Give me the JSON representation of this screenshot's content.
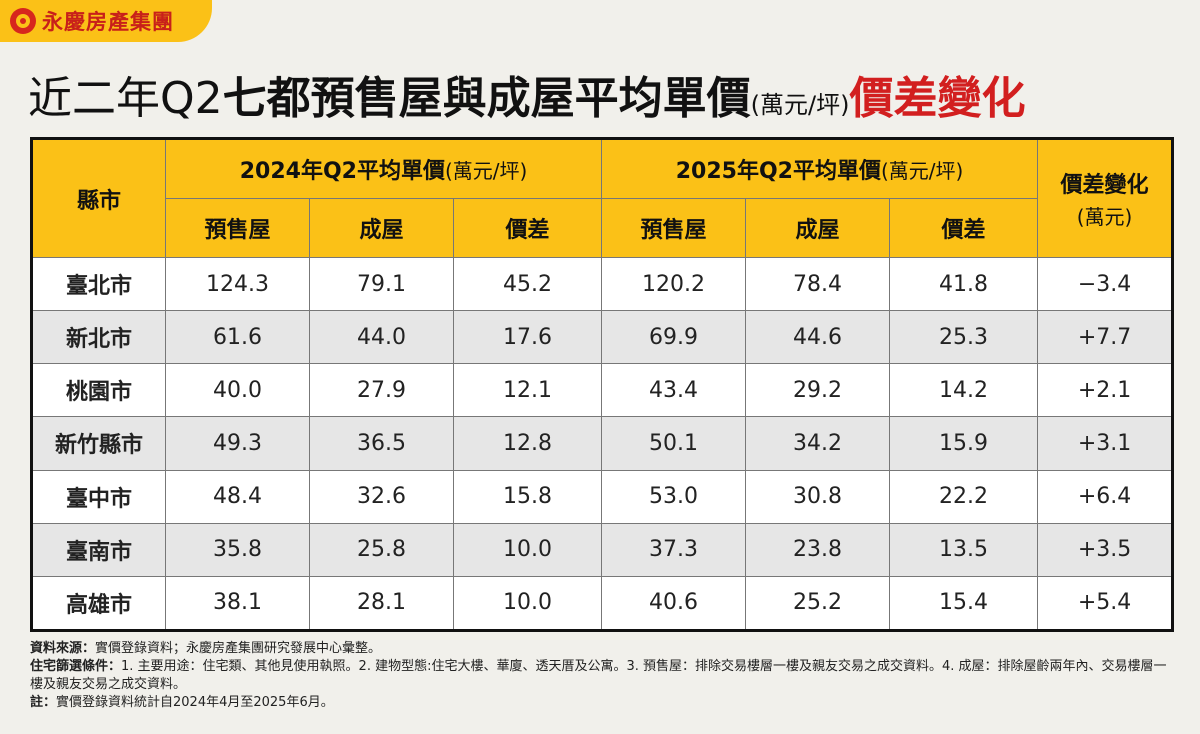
{
  "brand": {
    "name": "永慶房產集團"
  },
  "title": {
    "part1": "近二年Q2",
    "part2": "七都預售屋與成屋平均單價",
    "unit": "(萬元/坪)",
    "part3": "價差變化"
  },
  "chart_data": {
    "type": "table",
    "header": {
      "city": "縣市",
      "group_2024": "2024年Q2平均單價",
      "group_2025": "2025年Q2平均單價",
      "group_unit": "(萬元/坪)",
      "change": "價差變化",
      "change_unit": "(萬元)",
      "sub_presale": "預售屋",
      "sub_existing": "成屋",
      "sub_gap": "價差"
    },
    "rows": [
      {
        "city": "臺北市",
        "c2024": [
          "124.3",
          "79.1",
          "45.2"
        ],
        "c2025": [
          "120.2",
          "78.4",
          "41.8"
        ],
        "change": "−3.4"
      },
      {
        "city": "新北市",
        "c2024": [
          "61.6",
          "44.0",
          "17.6"
        ],
        "c2025": [
          "69.9",
          "44.6",
          "25.3"
        ],
        "change": "+7.7"
      },
      {
        "city": "桃園市",
        "c2024": [
          "40.0",
          "27.9",
          "12.1"
        ],
        "c2025": [
          "43.4",
          "29.2",
          "14.2"
        ],
        "change": "+2.1"
      },
      {
        "city": "新竹縣市",
        "c2024": [
          "49.3",
          "36.5",
          "12.8"
        ],
        "c2025": [
          "50.1",
          "34.2",
          "15.9"
        ],
        "change": "+3.1"
      },
      {
        "city": "臺中市",
        "c2024": [
          "48.4",
          "32.6",
          "15.8"
        ],
        "c2025": [
          "53.0",
          "30.8",
          "22.2"
        ],
        "change": "+6.4"
      },
      {
        "city": "臺南市",
        "c2024": [
          "35.8",
          "25.8",
          "10.0"
        ],
        "c2025": [
          "37.3",
          "23.8",
          "13.5"
        ],
        "change": "+3.5"
      },
      {
        "city": "高雄市",
        "c2024": [
          "38.1",
          "28.1",
          "10.0"
        ],
        "c2025": [
          "40.6",
          "25.2",
          "15.4"
        ],
        "change": "+5.4"
      }
    ]
  },
  "notes": {
    "source_label": "資料來源：",
    "source_text": "實價登錄資料；永慶房產集團研究發展中心彙整。",
    "criteria_label": "住宅篩選條件：",
    "criteria_text": "1. 主要用途：住宅類、其他見使用執照。2. 建物型態:住宅大樓、華廈、透天厝及公寓。3. 預售屋：排除交易樓層一樓及親友交易之成交資料。4. 成屋：排除屋齡兩年內、交易樓層一樓及親友交易之成交資料。",
    "note_label": "註：",
    "note_text": "實價登錄資料統計自2024年4月至2025年6月。"
  },
  "colors": {
    "accent": "#fbc117",
    "brand_red": "#d21f1f",
    "alt_row": "#e6e6e6"
  }
}
